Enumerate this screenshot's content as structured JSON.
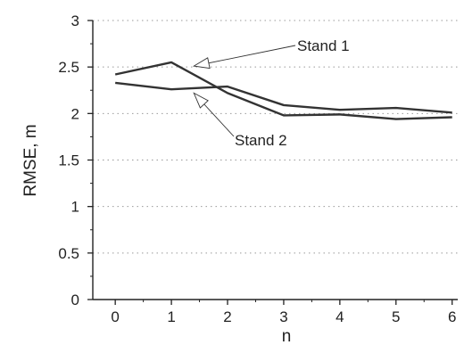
{
  "chart_data": {
    "type": "line",
    "title": "",
    "xlabel": "n",
    "ylabel": "RMSE, m",
    "xlim": [
      -0.4,
      6.1
    ],
    "ylim": [
      0,
      3
    ],
    "x_ticks": [
      0,
      1,
      2,
      3,
      4,
      5,
      6
    ],
    "y_ticks": [
      0,
      0.5,
      1,
      1.5,
      2,
      2.5,
      3
    ],
    "x_tick_labels": [
      "0",
      "1",
      "2",
      "3",
      "4",
      "5",
      "6"
    ],
    "y_tick_labels": [
      "0",
      "0.5",
      "1",
      "1.5",
      "2",
      "2.5",
      "3"
    ],
    "grid": "horizontal-dotted",
    "x": [
      0,
      1,
      2,
      3,
      4,
      5,
      6
    ],
    "series": [
      {
        "name": "Stand 1",
        "values": [
          2.42,
          2.55,
          2.22,
          1.98,
          1.99,
          1.94,
          1.96
        ]
      },
      {
        "name": "Stand 2",
        "values": [
          2.33,
          2.26,
          2.29,
          2.09,
          2.04,
          2.06,
          2.01
        ]
      }
    ],
    "annotations": [
      {
        "text": "Stand 1",
        "series": 0,
        "point_x": 1.4,
        "point_y": 2.51
      },
      {
        "text": "Stand 2",
        "series": 1,
        "point_x": 1.4,
        "point_y": 2.22
      }
    ],
    "colors": {
      "line": "#333333",
      "grid": "#999999",
      "axis": "#222222"
    }
  }
}
